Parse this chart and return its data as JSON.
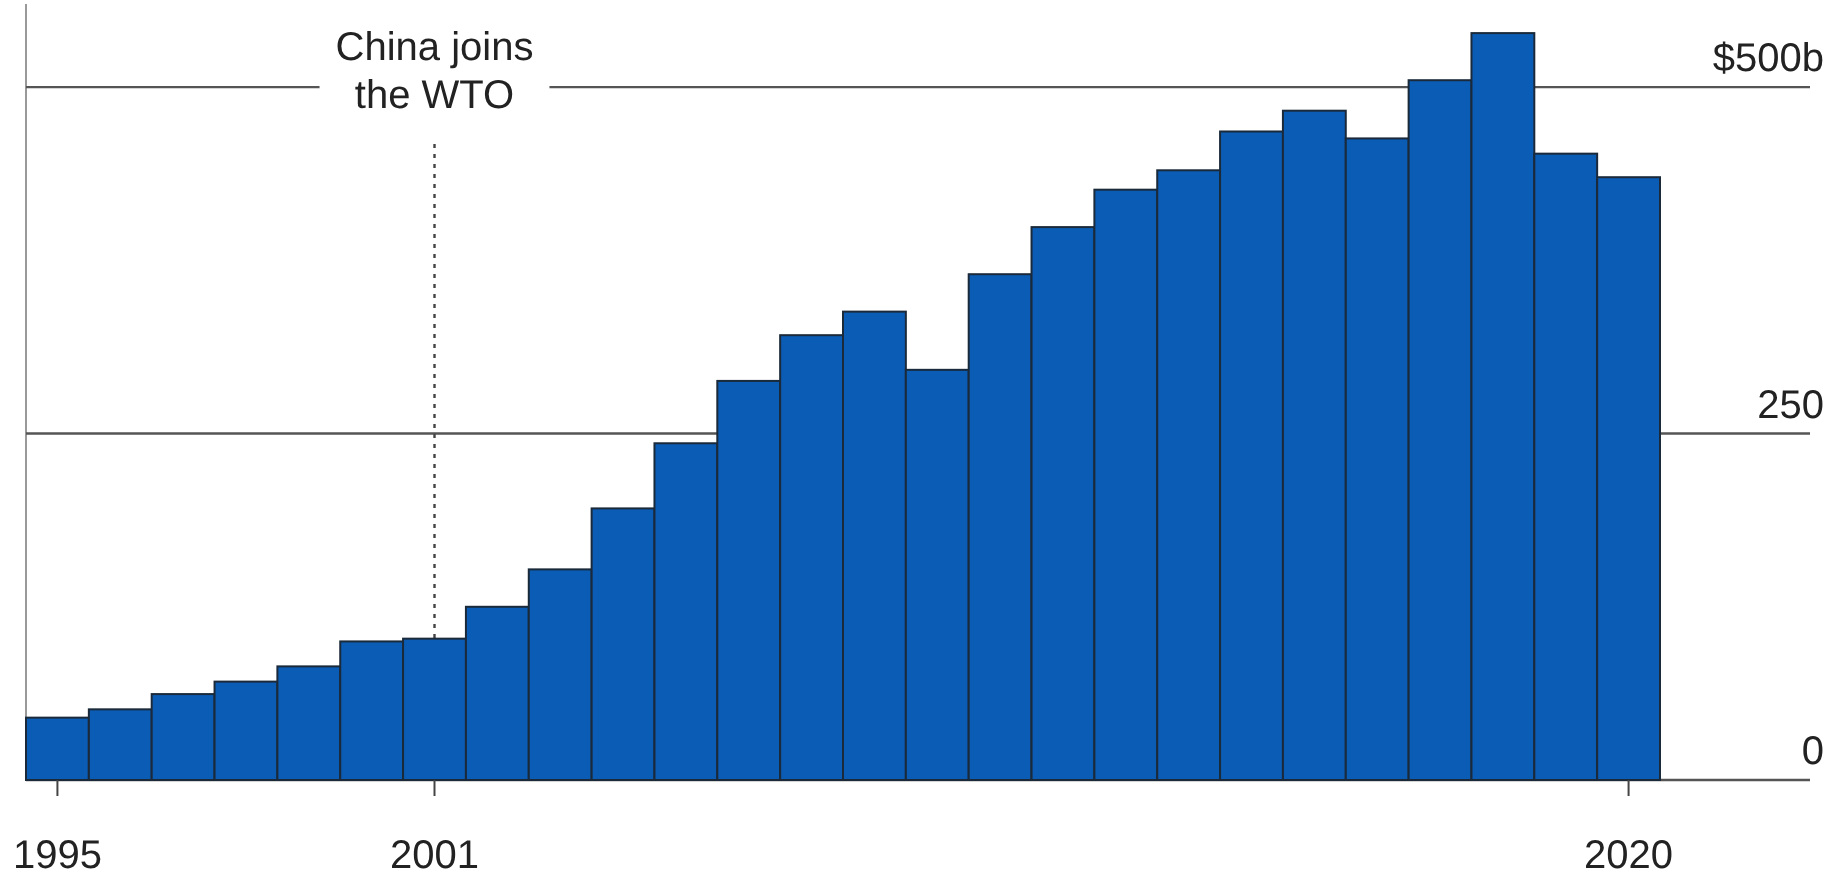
{
  "chart_data": {
    "type": "bar",
    "categories": [
      "1995",
      null,
      null,
      null,
      null,
      null,
      "2001",
      null,
      null,
      null,
      null,
      null,
      null,
      null,
      null,
      null,
      null,
      null,
      null,
      null,
      null,
      null,
      null,
      null,
      null,
      "2020"
    ],
    "values": [
      45,
      51,
      62,
      71,
      82,
      100,
      102,
      125,
      152,
      196,
      243,
      288,
      321,
      338,
      296,
      365,
      399,
      426,
      440,
      468,
      483,
      463,
      505,
      539,
      452,
      435
    ],
    "color": "#0b5cb5",
    "ylim": [
      0,
      560
    ],
    "yticks": [
      0,
      250,
      {
        "value": 500,
        "label": "$500b"
      }
    ],
    "grid": "y",
    "ref_lines": [
      {
        "axis": "x",
        "value": "2001",
        "label": "China joins the WTO",
        "line_style": "dotted"
      }
    ]
  }
}
